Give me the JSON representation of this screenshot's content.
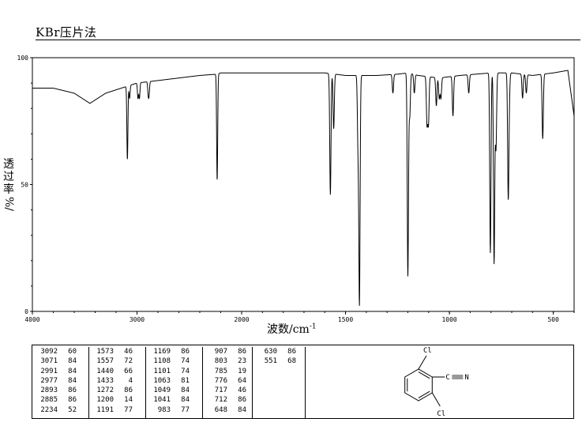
{
  "header": {
    "title": "KBr压片法"
  },
  "chart_data": {
    "type": "line",
    "xlabel": "波数/cm",
    "xlabel_sup": "-1",
    "ylabel_chars": [
      "透",
      "过",
      "率"
    ],
    "ylabel_unit": "%/",
    "xlim": [
      4000,
      400
    ],
    "ylim": [
      0,
      100
    ],
    "x_ticks": [
      "4000",
      "3000",
      "2000",
      "1500",
      "1000",
      "500"
    ],
    "y_ticks": [
      "0",
      "50",
      "100"
    ],
    "grid": false,
    "line_color": "#000000",
    "baseline": [
      [
        4000,
        88
      ],
      [
        3800,
        88
      ],
      [
        3600,
        86
      ],
      [
        3450,
        82
      ],
      [
        3300,
        86
      ],
      [
        3150,
        88
      ],
      [
        3000,
        90
      ],
      [
        2800,
        91
      ],
      [
        2600,
        92
      ],
      [
        2400,
        93
      ],
      [
        2236,
        93.5
      ],
      [
        2200,
        94
      ],
      [
        2000,
        94
      ],
      [
        1800,
        94
      ],
      [
        1600,
        94
      ],
      [
        1500,
        93
      ],
      [
        1350,
        93
      ],
      [
        1250,
        93.5
      ],
      [
        1200,
        94
      ],
      [
        1150,
        93
      ],
      [
        1050,
        92
      ],
      [
        950,
        93
      ],
      [
        800,
        94
      ],
      [
        700,
        94
      ],
      [
        600,
        93
      ],
      [
        500,
        94
      ],
      [
        430,
        95
      ],
      [
        400,
        77
      ]
    ],
    "peaks": [
      {
        "wn": 3092,
        "t": 60
      },
      {
        "wn": 3071,
        "t": 84
      },
      {
        "wn": 2991,
        "t": 84
      },
      {
        "wn": 2977,
        "t": 84
      },
      {
        "wn": 2893,
        "t": 86
      },
      {
        "wn": 2885,
        "t": 86
      },
      {
        "wn": 2234,
        "t": 52
      },
      {
        "wn": 1573,
        "t": 46
      },
      {
        "wn": 1557,
        "t": 72
      },
      {
        "wn": 1440,
        "t": 66
      },
      {
        "wn": 1433,
        "t": 4
      },
      {
        "wn": 1272,
        "t": 86
      },
      {
        "wn": 1200,
        "t": 14
      },
      {
        "wn": 1191,
        "t": 77
      },
      {
        "wn": 1169,
        "t": 86
      },
      {
        "wn": 1108,
        "t": 74
      },
      {
        "wn": 1101,
        "t": 74
      },
      {
        "wn": 1063,
        "t": 81
      },
      {
        "wn": 1049,
        "t": 84
      },
      {
        "wn": 1041,
        "t": 84
      },
      {
        "wn": 983,
        "t": 77
      },
      {
        "wn": 907,
        "t": 86
      },
      {
        "wn": 803,
        "t": 23
      },
      {
        "wn": 785,
        "t": 19
      },
      {
        "wn": 776,
        "t": 64
      },
      {
        "wn": 717,
        "t": 46
      },
      {
        "wn": 712,
        "t": 86
      },
      {
        "wn": 648,
        "t": 84
      },
      {
        "wn": 630,
        "t": 86
      },
      {
        "wn": 551,
        "t": 68
      }
    ]
  },
  "peak_table": {
    "columns": [
      [
        [
          "3092",
          "60"
        ],
        [
          "3071",
          "84"
        ],
        [
          "2991",
          "84"
        ],
        [
          "2977",
          "84"
        ],
        [
          "2893",
          "86"
        ],
        [
          "2885",
          "86"
        ],
        [
          "2234",
          "52"
        ]
      ],
      [
        [
          "1573",
          "46"
        ],
        [
          "1557",
          "72"
        ],
        [
          "1440",
          "66"
        ],
        [
          "1433",
          "4"
        ],
        [
          "1272",
          "86"
        ],
        [
          "1200",
          "14"
        ],
        [
          "1191",
          "77"
        ]
      ],
      [
        [
          "1169",
          "86"
        ],
        [
          "1108",
          "74"
        ],
        [
          "1101",
          "74"
        ],
        [
          "1063",
          "81"
        ],
        [
          "1049",
          "84"
        ],
        [
          "1041",
          "84"
        ],
        [
          "983",
          "77"
        ]
      ],
      [
        [
          "907",
          "86"
        ],
        [
          "803",
          "23"
        ],
        [
          "785",
          "19"
        ],
        [
          "776",
          "64"
        ],
        [
          "717",
          "46"
        ],
        [
          "712",
          "86"
        ],
        [
          "648",
          "84"
        ]
      ],
      [
        [
          "630",
          "86"
        ],
        [
          "551",
          "68"
        ]
      ]
    ]
  },
  "structure": {
    "cl_top": "Cl",
    "cl_bottom": "Cl",
    "nitrile_c": "C",
    "nitrile_n": "N"
  }
}
